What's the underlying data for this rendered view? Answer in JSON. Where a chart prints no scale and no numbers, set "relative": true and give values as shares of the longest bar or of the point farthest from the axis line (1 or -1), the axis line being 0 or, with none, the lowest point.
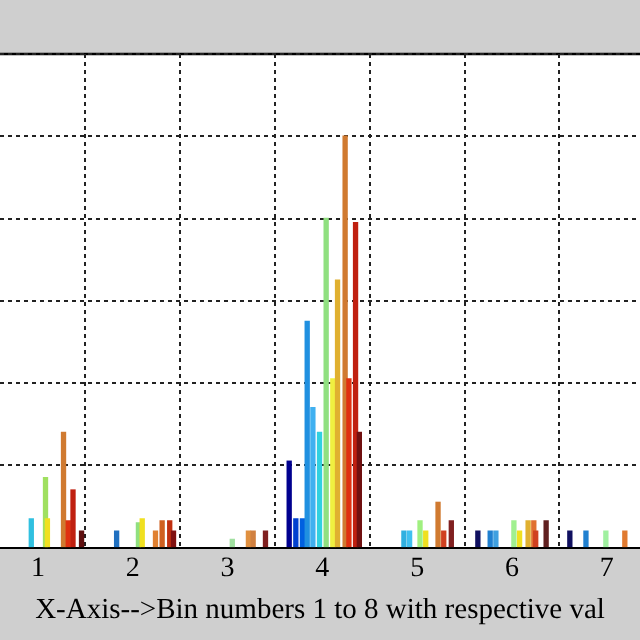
{
  "chart_data": {
    "type": "bar",
    "relative": true,
    "xlabel": "X-Axis-->Bin numbers 1 to 8 with respective val",
    "x": [
      0.93,
      1.08,
      1.1,
      1.27,
      1.32,
      1.37,
      1.46,
      1.83,
      2.06,
      2.1,
      2.24,
      2.31,
      2.39,
      2.43,
      3.05,
      3.22,
      3.27,
      3.4,
      3.65,
      3.72,
      3.79,
      3.84,
      3.9,
      3.97,
      4.04,
      4.11,
      4.16,
      4.24,
      4.28,
      4.35,
      4.39,
      4.86,
      4.92,
      5.03,
      5.09,
      5.22,
      5.28,
      5.36,
      5.64,
      5.77,
      5.83,
      6.02,
      6.08,
      6.17,
      6.23,
      6.25,
      6.36,
      6.61,
      6.78,
      6.99,
      7.19
    ],
    "values": [
      0.07,
      0.17,
      0.07,
      0.28,
      0.065,
      0.14,
      0.04,
      0.04,
      0.06,
      0.07,
      0.04,
      0.065,
      0.065,
      0.04,
      0.02,
      0.04,
      0.04,
      0.04,
      0.21,
      0.07,
      0.07,
      0.55,
      0.34,
      0.28,
      0.8,
      0.41,
      0.65,
      1,
      0.41,
      0.79,
      0.28,
      0.04,
      0.04,
      0.065,
      0.04,
      0.11,
      0.04,
      0.065,
      0.04,
      0.04,
      0.04,
      0.065,
      0.04,
      0.065,
      0.065,
      0.04,
      0.065,
      0.04,
      0.04,
      0.04,
      0.04
    ],
    "colors": [
      "#30c0e0",
      "#a0e060",
      "#f0e020",
      "#d07a30",
      "#e03010",
      "#c02010",
      "#601010",
      "#2070c0",
      "#90e080",
      "#f0e020",
      "#e08030",
      "#d06020",
      "#c03010",
      "#801010",
      "#a0e0a0",
      "#e09040",
      "#d08040",
      "#802020",
      "#00008f",
      "#0040d0",
      "#0060e0",
      "#2090e0",
      "#40b0f0",
      "#30d0e0",
      "#90e080",
      "#f0f040",
      "#e0b030",
      "#d07a30",
      "#e03010",
      "#c02010",
      "#701010",
      "#30b0e0",
      "#40c0f0",
      "#a0f080",
      "#f0e020",
      "#d07a30",
      "#d04020",
      "#802020",
      "#101060",
      "#2080d0",
      "#40a0e0",
      "#a0f090",
      "#f0e020",
      "#e0b030",
      "#e07030",
      "#d04020",
      "#602020",
      "#101060",
      "#2080d0",
      "#a0f0a0",
      "#e07a30"
    ],
    "xlim": [
      0.6,
      7.35
    ],
    "xticks": [
      1,
      2,
      3,
      4,
      5,
      6,
      7
    ],
    "grid": true
  }
}
